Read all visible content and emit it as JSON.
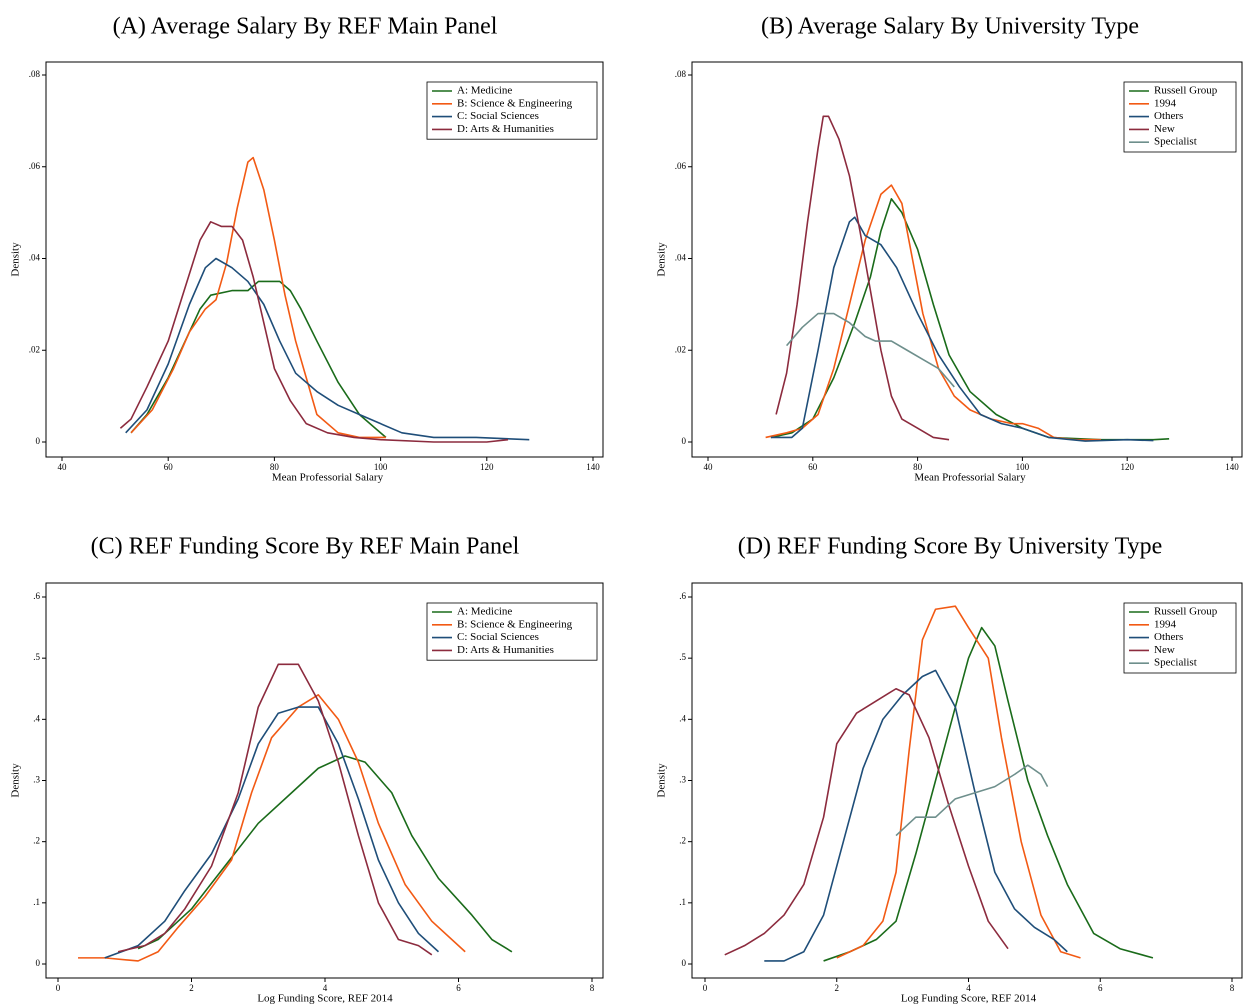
{
  "chart_data": [
    {
      "type": "line",
      "title": "(A)  Average Salary By REF Main Panel",
      "xlabel": "Mean Professorial Salary",
      "ylabel": "Density",
      "xlim": [
        40,
        140
      ],
      "ylim": [
        0,
        0.08
      ],
      "xticks": [
        40,
        60,
        80,
        100,
        120,
        140
      ],
      "yticks": [
        0,
        {
          "value": 0.02,
          "label": ".02"
        },
        {
          "value": 0.04,
          "label": ".04"
        },
        {
          "value": 0.06,
          "label": ".06"
        },
        {
          "value": 0.08,
          "label": ".08"
        }
      ],
      "legend": "upper right",
      "series": [
        {
          "name": "A: Medicine",
          "color": "#1a6b1a",
          "x": [
            53,
            56,
            60,
            64,
            66,
            68,
            72,
            75,
            77,
            79,
            81,
            83,
            85,
            88,
            92,
            96,
            101
          ],
          "values": [
            0.002,
            0.006,
            0.014,
            0.024,
            0.029,
            0.032,
            0.033,
            0.033,
            0.035,
            0.035,
            0.035,
            0.033,
            0.029,
            0.022,
            0.013,
            0.006,
            0.001
          ]
        },
        {
          "name": "B: Science & Engineering",
          "color": "#f25a14",
          "x": [
            53,
            57,
            61,
            64,
            67,
            69,
            71,
            73,
            75,
            76,
            78,
            80,
            82,
            84,
            86,
            88,
            92,
            96,
            101
          ],
          "values": [
            0.002,
            0.007,
            0.016,
            0.024,
            0.029,
            0.031,
            0.039,
            0.051,
            0.061,
            0.062,
            0.055,
            0.044,
            0.032,
            0.022,
            0.014,
            0.006,
            0.002,
            0.001,
            0.001
          ]
        },
        {
          "name": "C: Social Sciences",
          "color": "#1f4e79",
          "x": [
            52,
            56,
            60,
            64,
            67,
            69,
            72,
            75,
            78,
            81,
            84,
            88,
            92,
            96,
            100,
            104,
            110,
            118,
            128
          ],
          "values": [
            0.002,
            0.007,
            0.017,
            0.03,
            0.038,
            0.04,
            0.038,
            0.035,
            0.03,
            0.022,
            0.015,
            0.011,
            0.008,
            0.006,
            0.004,
            0.002,
            0.001,
            0.001,
            0.0005
          ]
        },
        {
          "name": "D: Arts & Humanities",
          "color": "#8c2b3e",
          "x": [
            51,
            53,
            56,
            60,
            63,
            66,
            68,
            70,
            72,
            74,
            76,
            78,
            80,
            83,
            86,
            90,
            95,
            100,
            110,
            120,
            124
          ],
          "values": [
            0.003,
            0.005,
            0.012,
            0.022,
            0.033,
            0.044,
            0.048,
            0.047,
            0.047,
            0.044,
            0.036,
            0.026,
            0.016,
            0.009,
            0.004,
            0.002,
            0.001,
            0.0005,
            0,
            0,
            0.0005
          ]
        }
      ]
    },
    {
      "type": "line",
      "title": "(B)  Average Salary By University Type",
      "xlabel": "Mean Professorial Salary",
      "ylabel": "Density",
      "xlim": [
        40,
        140
      ],
      "ylim": [
        0,
        0.08
      ],
      "xticks": [
        40,
        60,
        80,
        100,
        120,
        140
      ],
      "yticks": [
        0,
        {
          "value": 0.02,
          "label": ".02"
        },
        {
          "value": 0.04,
          "label": ".04"
        },
        {
          "value": 0.06,
          "label": ".06"
        },
        {
          "value": 0.08,
          "label": ".08"
        }
      ],
      "legend": "upper right",
      "series": [
        {
          "name": "Russell Group",
          "color": "#1a6b1a",
          "x": [
            52,
            56,
            60,
            64,
            68,
            71,
            73,
            75,
            77,
            80,
            83,
            86,
            90,
            95,
            100,
            105,
            115,
            120,
            125,
            128
          ],
          "values": [
            0.001,
            0.002,
            0.005,
            0.014,
            0.026,
            0.036,
            0.046,
            0.053,
            0.05,
            0.042,
            0.03,
            0.019,
            0.011,
            0.006,
            0.003,
            0.001,
            0.0005,
            0.0005,
            0.0005,
            0.0007
          ]
        },
        {
          "name": "1994",
          "color": "#f25a14",
          "x": [
            51,
            55,
            58,
            61,
            64,
            67,
            70,
            73,
            75,
            77,
            79,
            81,
            84,
            87,
            90,
            94,
            98,
            100,
            103,
            106,
            110,
            115
          ],
          "values": [
            0.001,
            0.002,
            0.003,
            0.006,
            0.016,
            0.03,
            0.044,
            0.054,
            0.056,
            0.052,
            0.04,
            0.028,
            0.016,
            0.01,
            0.007,
            0.005,
            0.004,
            0.004,
            0.003,
            0.001,
            0.0005,
            0.0005
          ]
        },
        {
          "name": "Others",
          "color": "#1f4e79",
          "x": [
            52,
            56,
            58,
            61,
            64,
            67,
            68,
            70,
            73,
            76,
            80,
            84,
            88,
            92,
            96,
            100,
            105,
            112,
            120,
            125
          ],
          "values": [
            0.001,
            0.001,
            0.003,
            0.02,
            0.038,
            0.048,
            0.049,
            0.045,
            0.043,
            0.038,
            0.028,
            0.019,
            0.012,
            0.006,
            0.004,
            0.003,
            0.001,
            0.0002,
            0.0005,
            0.0003
          ]
        },
        {
          "name": "New",
          "color": "#8c2b3e",
          "x": [
            53,
            55,
            57,
            59,
            61,
            62,
            63,
            65,
            67,
            69,
            71,
            73,
            75,
            77,
            80,
            83,
            86
          ],
          "values": [
            0.006,
            0.015,
            0.03,
            0.048,
            0.064,
            0.071,
            0.071,
            0.066,
            0.058,
            0.046,
            0.033,
            0.02,
            0.01,
            0.005,
            0.003,
            0.001,
            0.0005
          ]
        },
        {
          "name": "Specialist",
          "color": "#6e8f8c",
          "x": [
            55,
            58,
            61,
            64,
            67,
            70,
            72,
            75,
            78,
            81,
            84,
            87
          ],
          "values": [
            0.021,
            0.025,
            0.028,
            0.028,
            0.026,
            0.023,
            0.022,
            0.022,
            0.02,
            0.018,
            0.016,
            0.012
          ]
        }
      ]
    },
    {
      "type": "line",
      "title": "(C)  REF Funding Score By REF Main Panel",
      "xlabel": "Log Funding Score, REF 2014",
      "ylabel": "Density",
      "xlim": [
        0,
        8
      ],
      "ylim": [
        0,
        0.6
      ],
      "xticks": [
        0,
        2,
        4,
        6,
        8
      ],
      "yticks": [
        0,
        {
          "value": 0.1,
          "label": ".1"
        },
        {
          "value": 0.2,
          "label": ".2"
        },
        {
          "value": 0.3,
          "label": ".3"
        },
        {
          "value": 0.4,
          "label": ".4"
        },
        {
          "value": 0.5,
          "label": ".5"
        },
        {
          "value": 0.6,
          "label": ".6"
        }
      ],
      "legend": "upper right",
      "series": [
        {
          "name": "A: Medicine",
          "color": "#1a6b1a",
          "x": [
            1.2,
            1.5,
            2,
            2.5,
            3,
            3.5,
            3.9,
            4.3,
            4.6,
            5,
            5.3,
            5.7,
            6.2,
            6.5,
            6.8
          ],
          "values": [
            0.025,
            0.04,
            0.09,
            0.16,
            0.23,
            0.28,
            0.32,
            0.34,
            0.33,
            0.28,
            0.21,
            0.14,
            0.08,
            0.04,
            0.02
          ]
        },
        {
          "name": "B: Science & Engineering",
          "color": "#f25a14",
          "x": [
            0.3,
            0.7,
            1.2,
            1.5,
            1.8,
            2.2,
            2.6,
            2.9,
            3.2,
            3.6,
            3.9,
            4.2,
            4.5,
            4.8,
            5.2,
            5.6,
            6.1
          ],
          "values": [
            0.01,
            0.01,
            0.005,
            0.02,
            0.06,
            0.11,
            0.17,
            0.28,
            0.37,
            0.42,
            0.44,
            0.4,
            0.33,
            0.23,
            0.13,
            0.07,
            0.02
          ]
        },
        {
          "name": "C: Social Sciences",
          "color": "#1f4e79",
          "x": [
            0.7,
            1.2,
            1.6,
            1.9,
            2.3,
            2.7,
            3.0,
            3.3,
            3.6,
            3.9,
            4.2,
            4.5,
            4.8,
            5.1,
            5.4,
            5.7
          ],
          "values": [
            0.01,
            0.03,
            0.07,
            0.12,
            0.18,
            0.27,
            0.36,
            0.41,
            0.42,
            0.42,
            0.36,
            0.27,
            0.17,
            0.1,
            0.05,
            0.02
          ]
        },
        {
          "name": "D: Arts & Humanities",
          "color": "#8c2b3e",
          "x": [
            0.9,
            1.3,
            1.6,
            1.9,
            2.3,
            2.7,
            3.0,
            3.3,
            3.6,
            3.9,
            4.2,
            4.5,
            4.8,
            5.1,
            5.4,
            5.6
          ],
          "values": [
            0.02,
            0.03,
            0.05,
            0.09,
            0.16,
            0.28,
            0.42,
            0.49,
            0.49,
            0.43,
            0.33,
            0.21,
            0.1,
            0.04,
            0.03,
            0.015
          ]
        }
      ]
    },
    {
      "type": "line",
      "title": "(D)  REF Funding Score By University Type",
      "xlabel": "Log Funding Score, REF 2014",
      "ylabel": "Density",
      "xlim": [
        0,
        8
      ],
      "ylim": [
        0,
        0.6
      ],
      "xticks": [
        0,
        2,
        4,
        6,
        8
      ],
      "yticks": [
        0,
        {
          "value": 0.1,
          "label": ".1"
        },
        {
          "value": 0.2,
          "label": ".2"
        },
        {
          "value": 0.3,
          "label": ".3"
        },
        {
          "value": 0.4,
          "label": ".4"
        },
        {
          "value": 0.5,
          "label": ".5"
        },
        {
          "value": 0.6,
          "label": ".6"
        }
      ],
      "legend": "upper right",
      "series": [
        {
          "name": "Russell Group",
          "color": "#1a6b1a",
          "x": [
            1.8,
            2.2,
            2.6,
            2.9,
            3.2,
            3.5,
            3.8,
            4.0,
            4.2,
            4.4,
            4.6,
            4.9,
            5.2,
            5.5,
            5.9,
            6.3,
            6.8
          ],
          "values": [
            0.005,
            0.02,
            0.04,
            0.07,
            0.18,
            0.3,
            0.42,
            0.5,
            0.55,
            0.52,
            0.43,
            0.3,
            0.21,
            0.13,
            0.05,
            0.025,
            0.01
          ]
        },
        {
          "name": "1994",
          "color": "#f25a14",
          "x": [
            2.0,
            2.4,
            2.7,
            2.9,
            3.1,
            3.3,
            3.5,
            3.8,
            4.0,
            4.3,
            4.5,
            4.8,
            5.1,
            5.4,
            5.7
          ],
          "values": [
            0.01,
            0.03,
            0.07,
            0.15,
            0.35,
            0.53,
            0.58,
            0.585,
            0.55,
            0.5,
            0.37,
            0.2,
            0.08,
            0.02,
            0.01
          ]
        },
        {
          "name": "Others",
          "color": "#1f4e79",
          "x": [
            0.9,
            1.2,
            1.5,
            1.8,
            2.1,
            2.4,
            2.7,
            3.0,
            3.3,
            3.5,
            3.8,
            4.1,
            4.4,
            4.7,
            5.0,
            5.3,
            5.5
          ],
          "values": [
            0.005,
            0.005,
            0.02,
            0.08,
            0.2,
            0.32,
            0.4,
            0.44,
            0.47,
            0.48,
            0.42,
            0.28,
            0.15,
            0.09,
            0.06,
            0.04,
            0.02
          ]
        },
        {
          "name": "New",
          "color": "#8c2b3e",
          "x": [
            0.3,
            0.6,
            0.9,
            1.2,
            1.5,
            1.8,
            2.0,
            2.3,
            2.6,
            2.9,
            3.1,
            3.4,
            3.7,
            4.0,
            4.3,
            4.6
          ],
          "values": [
            0.015,
            0.03,
            0.05,
            0.08,
            0.13,
            0.24,
            0.36,
            0.41,
            0.43,
            0.45,
            0.44,
            0.37,
            0.26,
            0.16,
            0.07,
            0.025
          ]
        },
        {
          "name": "Specialist",
          "color": "#6e8f8c",
          "x": [
            2.9,
            3.2,
            3.5,
            3.8,
            4.1,
            4.4,
            4.7,
            4.9,
            5.1,
            5.2
          ],
          "values": [
            0.21,
            0.24,
            0.24,
            0.27,
            0.28,
            0.29,
            0.31,
            0.325,
            0.31,
            0.29
          ]
        }
      ]
    }
  ]
}
